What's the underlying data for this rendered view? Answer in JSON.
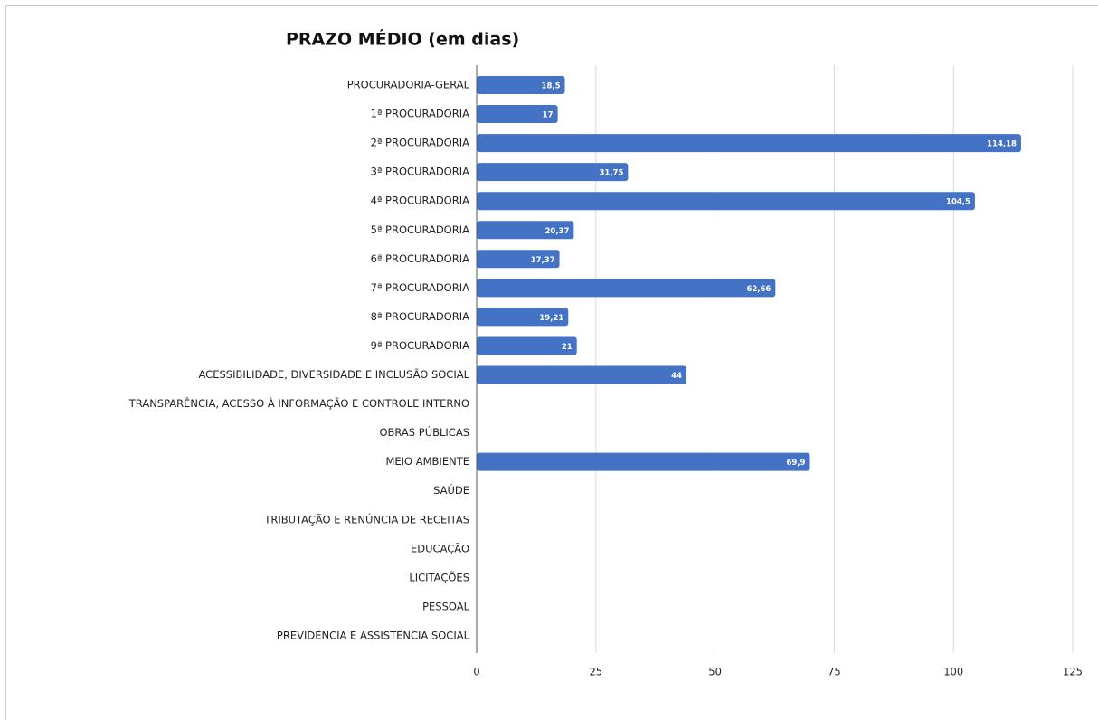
{
  "chart_data": {
    "type": "bar",
    "orientation": "horizontal",
    "title": "PRAZO MÉDIO (em dias)",
    "categories": [
      "PROCURADORIA-GERAL",
      "1ª PROCURADORIA",
      "2ª PROCURADORIA",
      "3ª PROCURADORIA",
      "4ª PROCURADORIA",
      "5ª PROCURADORIA",
      "6ª PROCURADORIA",
      "7ª PROCURADORIA",
      "8ª PROCURADORIA",
      "9ª PROCURADORIA",
      "ACESSIBILIDADE, DIVERSIDADE E INCLUSÃO SOCIAL",
      "TRANSPARÊNCIA, ACESSO À INFORMAÇÃO E CONTROLE INTERNO",
      "OBRAS PÚBLICAS",
      "MEIO AMBIENTE",
      "SAÚDE",
      "TRIBUTAÇÃO E RENÚNCIA DE RECEITAS",
      "EDUCAÇÃO",
      "LICITAÇÕES",
      "PESSOAL",
      "PREVIDÊNCIA E ASSISTÊNCIA SOCIAL"
    ],
    "values": [
      18.5,
      17,
      114.18,
      31.75,
      104.5,
      20.37,
      17.37,
      62.66,
      19.21,
      21,
      44,
      null,
      null,
      69.9,
      null,
      null,
      null,
      null,
      null,
      null
    ],
    "value_labels": [
      "18,5",
      "17",
      "114,18",
      "31,75",
      "104,5",
      "20,37",
      "17,37",
      "62,66",
      "19,21",
      "21",
      "44",
      null,
      null,
      "69,9",
      null,
      null,
      null,
      null,
      null,
      null
    ],
    "color": "#4472c4",
    "xlim": [
      0,
      125
    ],
    "xticks": [
      0,
      25,
      50,
      75,
      100,
      125
    ],
    "grid": true
  }
}
